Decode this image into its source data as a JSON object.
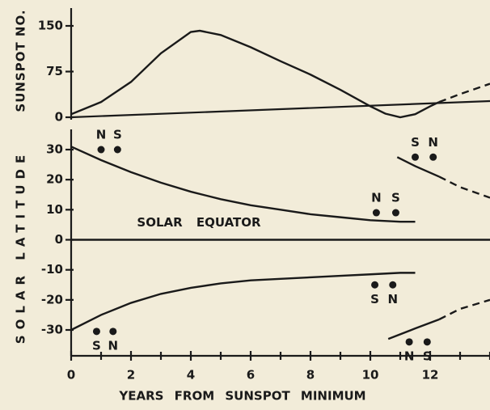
{
  "chart_data": [
    {
      "type": "line",
      "ylabel": "SUNSPOT NO.",
      "xlim": [
        0,
        14
      ],
      "ylim": [
        0,
        150
      ],
      "yticks": [
        0,
        75,
        150
      ],
      "series": [
        {
          "name": "cycle",
          "style": "solid",
          "color": "#1a1a1a",
          "x": [
            0,
            1,
            2,
            3,
            4,
            4.3,
            5,
            6,
            7,
            8,
            9,
            10,
            10.5,
            11,
            11.5,
            12,
            12.3
          ],
          "values": [
            5,
            25,
            58,
            105,
            140,
            142,
            135,
            115,
            92,
            70,
            45,
            18,
            6,
            0,
            5,
            18,
            25
          ]
        },
        {
          "name": "next cycle",
          "style": "dashed",
          "color": "#1a1a1a",
          "x": [
            12.3,
            13,
            14
          ],
          "values": [
            25,
            38,
            55
          ]
        }
      ]
    },
    {
      "type": "line",
      "ylabel": "SOLAR LATITUDE",
      "xlabel": "YEARS FROM SUNSPOT MINIMUM",
      "xlim": [
        0,
        14
      ],
      "ylim": [
        -30,
        30
      ],
      "yticks": [
        -30,
        -20,
        -10,
        0,
        10,
        20,
        30
      ],
      "xticks": [
        0,
        2,
        4,
        6,
        8,
        10,
        12
      ],
      "xminor_ticks": [
        1,
        3,
        5,
        7,
        9,
        11,
        13,
        14
      ],
      "annotations": [
        {
          "text": "SOLAR EQUATOR",
          "x": 2.2,
          "y": 3
        }
      ],
      "series": [
        {
          "name": "north",
          "style": "solid",
          "color": "#1a1a1a",
          "x": [
            0,
            1,
            2,
            3,
            4,
            5,
            6,
            7,
            8,
            9,
            10,
            11,
            11.5
          ],
          "values": [
            31,
            26.5,
            22.5,
            19,
            16,
            13.5,
            11.5,
            10,
            8.5,
            7.5,
            6.5,
            6,
            6
          ]
        },
        {
          "name": "south",
          "style": "solid",
          "color": "#1a1a1a",
          "x": [
            0,
            1,
            2,
            3,
            4,
            5,
            6,
            7,
            8,
            9,
            10,
            11,
            11.5
          ],
          "values": [
            -30,
            -25,
            -21,
            -18,
            -16,
            -14.5,
            -13.5,
            -13,
            -12.5,
            -12,
            -11.5,
            -11,
            -11
          ]
        },
        {
          "name": "equator",
          "style": "solid",
          "color": "#1a1a1a",
          "x": [
            0,
            14
          ],
          "values": [
            0,
            0
          ]
        },
        {
          "name": "north new",
          "style": "solid",
          "color": "#1a1a1a",
          "x": [
            10.9,
            11.5,
            12.3
          ],
          "values": [
            27.5,
            24.5,
            21
          ]
        },
        {
          "name": "north new dashed",
          "style": "dashed",
          "color": "#1a1a1a",
          "x": [
            12.3,
            13,
            14
          ],
          "values": [
            21,
            17.5,
            14
          ]
        },
        {
          "name": "south new",
          "style": "solid",
          "color": "#1a1a1a",
          "x": [
            10.6,
            11.5,
            12.3
          ],
          "values": [
            -33,
            -29.5,
            -26.5
          ]
        },
        {
          "name": "south new dashed",
          "style": "dashed",
          "color": "#1a1a1a",
          "x": [
            12.3,
            13,
            14
          ],
          "values": [
            -26.5,
            -23,
            -20
          ]
        }
      ],
      "points": [
        {
          "label": "N",
          "x": 1.0,
          "y": 30,
          "pos": "above"
        },
        {
          "label": "S",
          "x": 1.55,
          "y": 30,
          "pos": "above"
        },
        {
          "label": "N",
          "x": 10.2,
          "y": 9,
          "pos": "above"
        },
        {
          "label": "S",
          "x": 10.85,
          "y": 9,
          "pos": "above"
        },
        {
          "label": "S",
          "x": 11.5,
          "y": 27.5,
          "pos": "above"
        },
        {
          "label": "N",
          "x": 12.1,
          "y": 27.5,
          "pos": "above"
        },
        {
          "label": "S",
          "x": 0.85,
          "y": -30.5,
          "pos": "below"
        },
        {
          "label": "N",
          "x": 1.4,
          "y": -30.5,
          "pos": "below"
        },
        {
          "label": "S",
          "x": 10.15,
          "y": -15,
          "pos": "below"
        },
        {
          "label": "N",
          "x": 10.75,
          "y": -15,
          "pos": "below"
        },
        {
          "label": "N",
          "x": 11.3,
          "y": -34,
          "pos": "below"
        },
        {
          "label": "S",
          "x": 11.9,
          "y": -34,
          "pos": "below"
        }
      ]
    }
  ]
}
